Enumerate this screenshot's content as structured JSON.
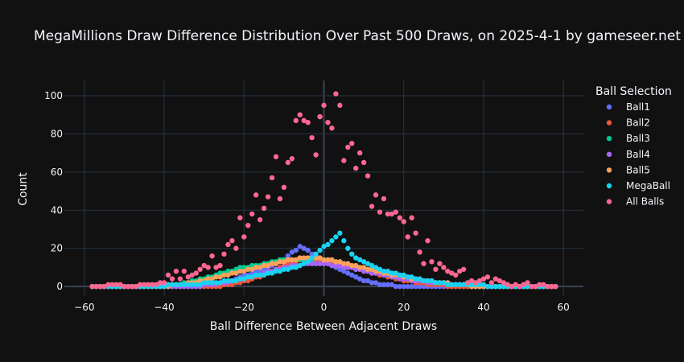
{
  "chart_data": {
    "type": "scatter",
    "title": "MegaMillions Draw Difference Distribution Over Past 500 Draws, on 2025-4-1 by gameseer.net",
    "xlabel": "Ball Difference Between Adjacent Draws",
    "ylabel": "Count",
    "xlim": [
      -65,
      65
    ],
    "ylim": [
      -5,
      108
    ],
    "xticks": [
      -60,
      -40,
      -20,
      0,
      20,
      40,
      60
    ],
    "yticks": [
      0,
      20,
      40,
      60,
      80,
      100
    ],
    "grid": true,
    "legend_title": "Ball Selection",
    "legend_position": "right",
    "x": [
      -58,
      -57,
      -56,
      -55,
      -54,
      -53,
      -52,
      -51,
      -50,
      -49,
      -48,
      -47,
      -46,
      -45,
      -44,
      -43,
      -42,
      -41,
      -40,
      -39,
      -38,
      -37,
      -36,
      -35,
      -34,
      -33,
      -32,
      -31,
      -30,
      -29,
      -28,
      -27,
      -26,
      -25,
      -24,
      -23,
      -22,
      -21,
      -20,
      -19,
      -18,
      -17,
      -16,
      -15,
      -14,
      -13,
      -12,
      -11,
      -10,
      -9,
      -8,
      -7,
      -6,
      -5,
      -4,
      -3,
      -2,
      -1,
      0,
      1,
      2,
      3,
      4,
      5,
      6,
      7,
      8,
      9,
      10,
      11,
      12,
      13,
      14,
      15,
      16,
      17,
      18,
      19,
      20,
      21,
      22,
      23,
      24,
      25,
      26,
      27,
      28,
      29,
      30,
      31,
      32,
      33,
      34,
      35,
      36,
      37,
      38,
      39,
      40,
      41,
      42,
      43,
      44,
      45,
      46,
      47,
      48,
      49,
      50,
      51,
      52,
      53,
      54,
      55,
      56,
      57,
      58
    ],
    "series": [
      {
        "name": "Ball1",
        "color": "#636efa",
        "values": [
          0,
          0,
          0,
          0,
          0,
          0,
          0,
          0,
          0,
          0,
          0,
          0,
          0,
          0,
          0,
          0,
          0,
          0,
          0,
          0,
          0,
          0,
          0,
          0,
          0,
          0,
          0,
          1,
          1,
          1,
          1,
          2,
          2,
          2,
          3,
          3,
          4,
          5,
          6,
          6,
          7,
          8,
          8,
          9,
          10,
          11,
          12,
          13,
          14,
          16,
          18,
          19,
          21,
          20,
          19,
          17,
          16,
          14,
          13,
          12,
          11,
          10,
          9,
          8,
          7,
          6,
          5,
          4,
          3,
          3,
          2,
          2,
          1,
          1,
          1,
          1,
          0,
          0,
          0,
          0,
          0,
          0,
          0,
          0,
          0,
          0,
          0,
          0,
          0,
          0,
          0,
          0,
          0,
          0,
          0,
          0,
          0,
          0,
          0,
          0,
          0,
          0,
          0,
          0,
          0,
          0,
          0,
          0,
          0,
          0,
          0,
          0,
          0,
          0,
          0,
          0,
          0
        ]
      },
      {
        "name": "Ball2",
        "color": "#ef553b",
        "values": [
          0,
          0,
          0,
          0,
          0,
          0,
          0,
          0,
          0,
          0,
          0,
          0,
          0,
          0,
          0,
          0,
          0,
          0,
          0,
          0,
          0,
          0,
          0,
          0,
          0,
          0,
          0,
          0,
          0,
          0,
          0,
          0,
          0,
          1,
          1,
          1,
          2,
          2,
          3,
          3,
          4,
          5,
          5,
          6,
          7,
          8,
          9,
          10,
          11,
          12,
          13,
          13,
          14,
          14,
          15,
          15,
          14,
          14,
          13,
          13,
          12,
          12,
          11,
          11,
          10,
          10,
          9,
          9,
          8,
          8,
          7,
          7,
          6,
          6,
          5,
          5,
          4,
          4,
          3,
          3,
          3,
          2,
          2,
          2,
          1,
          1,
          1,
          1,
          1,
          0,
          0,
          0,
          0,
          0,
          0,
          0,
          0,
          0,
          0,
          0,
          0,
          0,
          0,
          0,
          0,
          0,
          0,
          0,
          0,
          0,
          0,
          0,
          0,
          0,
          0,
          0,
          0
        ]
      },
      {
        "name": "Ball3",
        "color": "#00cc96",
        "values": [
          0,
          0,
          0,
          0,
          0,
          0,
          0,
          0,
          0,
          0,
          0,
          0,
          0,
          0,
          0,
          0,
          0,
          0,
          0,
          1,
          1,
          1,
          1,
          2,
          2,
          3,
          3,
          4,
          4,
          5,
          5,
          6,
          7,
          7,
          8,
          8,
          9,
          10,
          10,
          10,
          11,
          11,
          11,
          12,
          12,
          13,
          13,
          14,
          14,
          14,
          14,
          14,
          14,
          13,
          13,
          13,
          12,
          12,
          12,
          12,
          11,
          11,
          11,
          10,
          10,
          10,
          9,
          9,
          9,
          8,
          8,
          7,
          7,
          6,
          6,
          6,
          5,
          5,
          5,
          4,
          4,
          4,
          3,
          3,
          3,
          2,
          2,
          2,
          2,
          1,
          1,
          1,
          1,
          1,
          1,
          0,
          0,
          0,
          0,
          0,
          0,
          0,
          0,
          0,
          0,
          0,
          0,
          0,
          0,
          0,
          0,
          0,
          0,
          0,
          0,
          0,
          0
        ]
      },
      {
        "name": "Ball4",
        "color": "#ab63fa",
        "values": [
          0,
          0,
          0,
          0,
          0,
          0,
          0,
          0,
          0,
          0,
          0,
          0,
          0,
          0,
          0,
          0,
          0,
          0,
          0,
          0,
          0,
          0,
          0,
          0,
          0,
          0,
          0,
          0,
          1,
          1,
          1,
          1,
          2,
          2,
          2,
          3,
          3,
          4,
          4,
          5,
          5,
          6,
          6,
          7,
          8,
          8,
          9,
          9,
          10,
          10,
          11,
          11,
          11,
          12,
          12,
          12,
          12,
          12,
          12,
          12,
          11,
          11,
          11,
          10,
          10,
          10,
          9,
          9,
          8,
          8,
          7,
          7,
          7,
          6,
          6,
          5,
          5,
          4,
          4,
          4,
          3,
          3,
          3,
          3,
          2,
          2,
          2,
          2,
          2,
          2,
          1,
          1,
          1,
          1,
          1,
          1,
          1,
          1,
          0,
          0,
          0,
          0,
          0,
          0,
          0,
          0,
          0,
          0,
          0,
          0,
          0,
          0,
          0,
          0,
          0,
          0,
          0
        ]
      },
      {
        "name": "Ball5",
        "color": "#ffa15a",
        "values": [
          0,
          0,
          0,
          0,
          0,
          0,
          0,
          0,
          0,
          0,
          0,
          0,
          0,
          0,
          0,
          0,
          0,
          0,
          0,
          0,
          1,
          1,
          1,
          1,
          2,
          2,
          2,
          3,
          3,
          4,
          4,
          5,
          5,
          6,
          6,
          7,
          7,
          8,
          8,
          9,
          9,
          10,
          10,
          11,
          11,
          12,
          12,
          13,
          13,
          14,
          14,
          14,
          15,
          15,
          15,
          15,
          15,
          15,
          14,
          14,
          14,
          13,
          13,
          12,
          12,
          11,
          11,
          10,
          10,
          9,
          9,
          8,
          8,
          7,
          7,
          6,
          6,
          6,
          5,
          5,
          4,
          4,
          4,
          3,
          3,
          3,
          2,
          2,
          2,
          2,
          1,
          1,
          1,
          1,
          1,
          0,
          0,
          0,
          0,
          0,
          0,
          0,
          0,
          0,
          0,
          0,
          0,
          0,
          0,
          0,
          0,
          0,
          0,
          0,
          0,
          0,
          0
        ]
      },
      {
        "name": "MegaBall",
        "color": "#19d3f3",
        "values": [
          0,
          0,
          0,
          0,
          0,
          0,
          0,
          0,
          0,
          0,
          0,
          0,
          0,
          0,
          0,
          0,
          0,
          0,
          0,
          1,
          1,
          1,
          1,
          1,
          1,
          1,
          1,
          1,
          2,
          2,
          2,
          2,
          2,
          3,
          3,
          3,
          3,
          4,
          4,
          5,
          5,
          6,
          6,
          6,
          7,
          7,
          8,
          8,
          9,
          9,
          10,
          10,
          11,
          12,
          13,
          15,
          17,
          19,
          21,
          22,
          24,
          26,
          28,
          24,
          20,
          17,
          15,
          14,
          13,
          12,
          11,
          10,
          9,
          8,
          8,
          7,
          7,
          6,
          6,
          5,
          5,
          4,
          4,
          3,
          3,
          3,
          2,
          2,
          2,
          1,
          1,
          1,
          1,
          1,
          1,
          1,
          1,
          1,
          1,
          0,
          0,
          0,
          0,
          0,
          0,
          0,
          0,
          0,
          0,
          0,
          0,
          0,
          0,
          0,
          0,
          0,
          0
        ]
      },
      {
        "name": "All Balls",
        "color": "#ff6692",
        "values": [
          0,
          0,
          0,
          0,
          1,
          1,
          1,
          1,
          0,
          0,
          0,
          0,
          1,
          1,
          1,
          1,
          1,
          2,
          2,
          6,
          4,
          8,
          4,
          8,
          5,
          6,
          7,
          9,
          11,
          10,
          16,
          10,
          11,
          17,
          22,
          24,
          20,
          36,
          26,
          32,
          38,
          48,
          35,
          41,
          47,
          57,
          68,
          46,
          52,
          65,
          67,
          87,
          90,
          87,
          86,
          78,
          69,
          89,
          95,
          86,
          83,
          101,
          95,
          66,
          73,
          75,
          62,
          70,
          65,
          58,
          42,
          48,
          39,
          46,
          38,
          38,
          39,
          36,
          34,
          26,
          36,
          28,
          18,
          12,
          24,
          13,
          9,
          12,
          10,
          8,
          7,
          6,
          8,
          9,
          2,
          3,
          2,
          3,
          4,
          5,
          2,
          4,
          3,
          2,
          1,
          0,
          1,
          0,
          1,
          2,
          0,
          0,
          1,
          1,
          0,
          0,
          0
        ]
      }
    ]
  }
}
